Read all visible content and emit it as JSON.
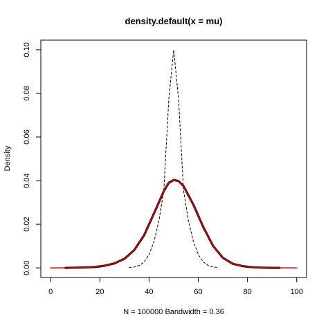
{
  "chart_data": {
    "type": "line",
    "title": "density.default(x = mu)",
    "xlabel": "N = 100000   Bandwidth = 0.36",
    "ylabel": "Density",
    "xlim": [
      -4,
      104
    ],
    "ylim": [
      -0.0044,
      0.1044
    ],
    "x_ticks": [
      0,
      20,
      40,
      60,
      80,
      100
    ],
    "y_ticks": [
      0.0,
      0.02,
      0.04,
      0.06,
      0.08,
      0.1
    ],
    "x_tick_labels": [
      "0",
      "20",
      "40",
      "60",
      "80",
      "100"
    ],
    "y_tick_labels": [
      "0.00",
      "0.02",
      "0.04",
      "0.06",
      "0.08",
      "0.10"
    ],
    "grid": false,
    "legend": "none",
    "series": [
      {
        "style": "dashed",
        "color": "#000000",
        "x": [
          32,
          34,
          36,
          38,
          40,
          42,
          44,
          46,
          48,
          50,
          52,
          54,
          56,
          58,
          60,
          62,
          64,
          66,
          68
        ],
        "y": [
          0.0002,
          0.0004,
          0.0011,
          0.0027,
          0.0061,
          0.0121,
          0.0216,
          0.0356,
          0.0771,
          0.1,
          0.0771,
          0.0356,
          0.0216,
          0.0121,
          0.0061,
          0.0027,
          0.0011,
          0.0004,
          0.0002
        ]
      },
      {
        "style": "solid-thick",
        "color": "#1a1a1a",
        "x": [
          6,
          10,
          14,
          18,
          22,
          26,
          30,
          34,
          38,
          42,
          46,
          48,
          50,
          52,
          54,
          58,
          62,
          66,
          70,
          74,
          78,
          82,
          86,
          90,
          93
        ],
        "y": [
          0.0,
          0.0001,
          0.0002,
          0.0004,
          0.001,
          0.0021,
          0.0042,
          0.0082,
          0.015,
          0.025,
          0.0352,
          0.039,
          0.0403,
          0.0398,
          0.0375,
          0.029,
          0.0188,
          0.0101,
          0.0046,
          0.0019,
          0.0008,
          0.0003,
          0.0001,
          0.0,
          0.0
        ]
      },
      {
        "style": "solid",
        "color": "#cc0000",
        "x": [
          0,
          6,
          10,
          14,
          18,
          22,
          26,
          30,
          34,
          38,
          42,
          46,
          48,
          50,
          52,
          54,
          58,
          62,
          66,
          70,
          74,
          78,
          82,
          86,
          90,
          94,
          100
        ],
        "y": [
          0.0,
          0.0,
          0.0001,
          0.0002,
          0.0004,
          0.001,
          0.0021,
          0.0042,
          0.0082,
          0.015,
          0.025,
          0.0352,
          0.039,
          0.0403,
          0.0398,
          0.0375,
          0.029,
          0.0188,
          0.0101,
          0.0046,
          0.0019,
          0.0008,
          0.0003,
          0.0001,
          0.0,
          0.0,
          0.0
        ]
      }
    ]
  }
}
